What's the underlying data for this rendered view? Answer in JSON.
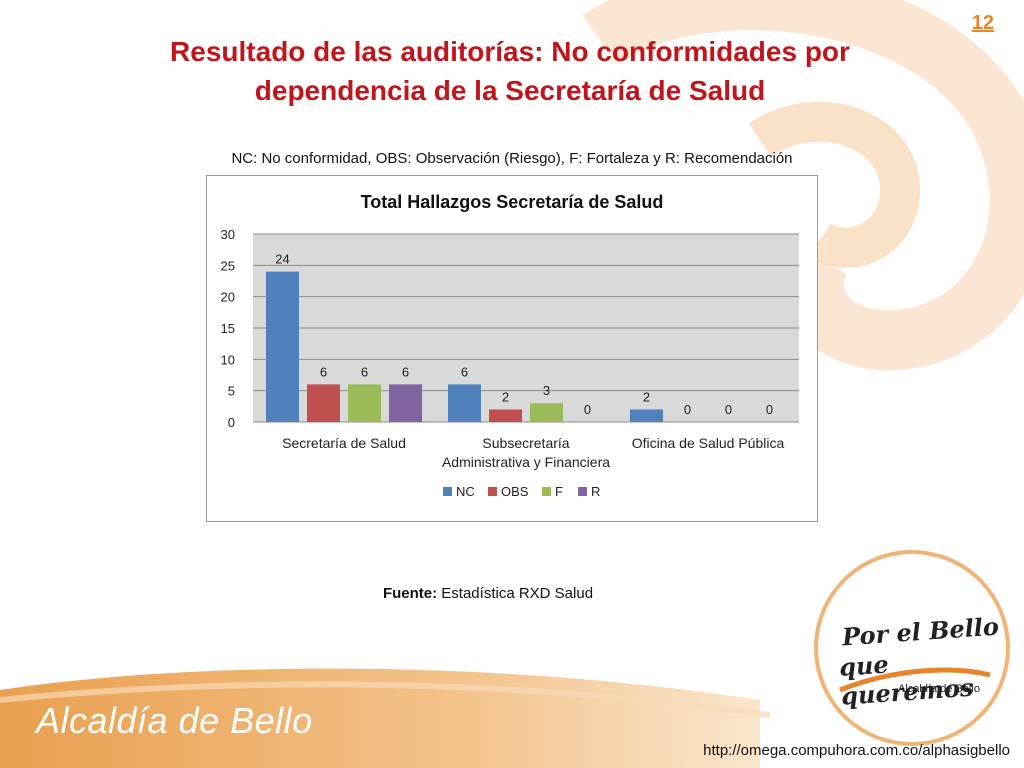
{
  "slide": {
    "number": "12",
    "title": "Resultado de las auditorías: No conformidades por dependencia de la Secretaría de Salud",
    "abbreviations": "NC: No conformidad, OBS: Observación (Riesgo), F: Fortaleza y R: Recomendación",
    "source_label": "Fuente:",
    "source_text": "Estadística RXD Salud",
    "footer_brand": "Alcaldía de Bello",
    "footer_url": "http://omega.compuhora.com.co/alphasigbello",
    "logo": {
      "line1": "Por el Bello",
      "line2": "que queremos",
      "sub": "Alcaldía de Bello"
    }
  },
  "colors": {
    "title": "#c0161b",
    "accent": "#e8852a",
    "plot_bg": "#d9d9d9",
    "NC": "#4f81bd",
    "OBS": "#c0504d",
    "F": "#9bbb59",
    "R": "#8064a2"
  },
  "chart_data": {
    "type": "bar",
    "title": "Total Hallazgos Secretaría de Salud",
    "categories": [
      [
        "Secretaría de Salud"
      ],
      [
        "Subsecretaría",
        "Administrativa y Financiera"
      ],
      [
        "Oficina de Salud Pública"
      ]
    ],
    "series": [
      {
        "name": "NC",
        "values": [
          24,
          6,
          2
        ]
      },
      {
        "name": "OBS",
        "values": [
          6,
          2,
          0
        ]
      },
      {
        "name": "F",
        "values": [
          6,
          3,
          0
        ]
      },
      {
        "name": "R",
        "values": [
          6,
          0,
          0
        ]
      }
    ],
    "ylim": [
      0,
      30
    ],
    "yticks": [
      0,
      5,
      10,
      15,
      20,
      25,
      30
    ],
    "grid": true,
    "legend": "bottom",
    "xlabel": "",
    "ylabel": ""
  }
}
